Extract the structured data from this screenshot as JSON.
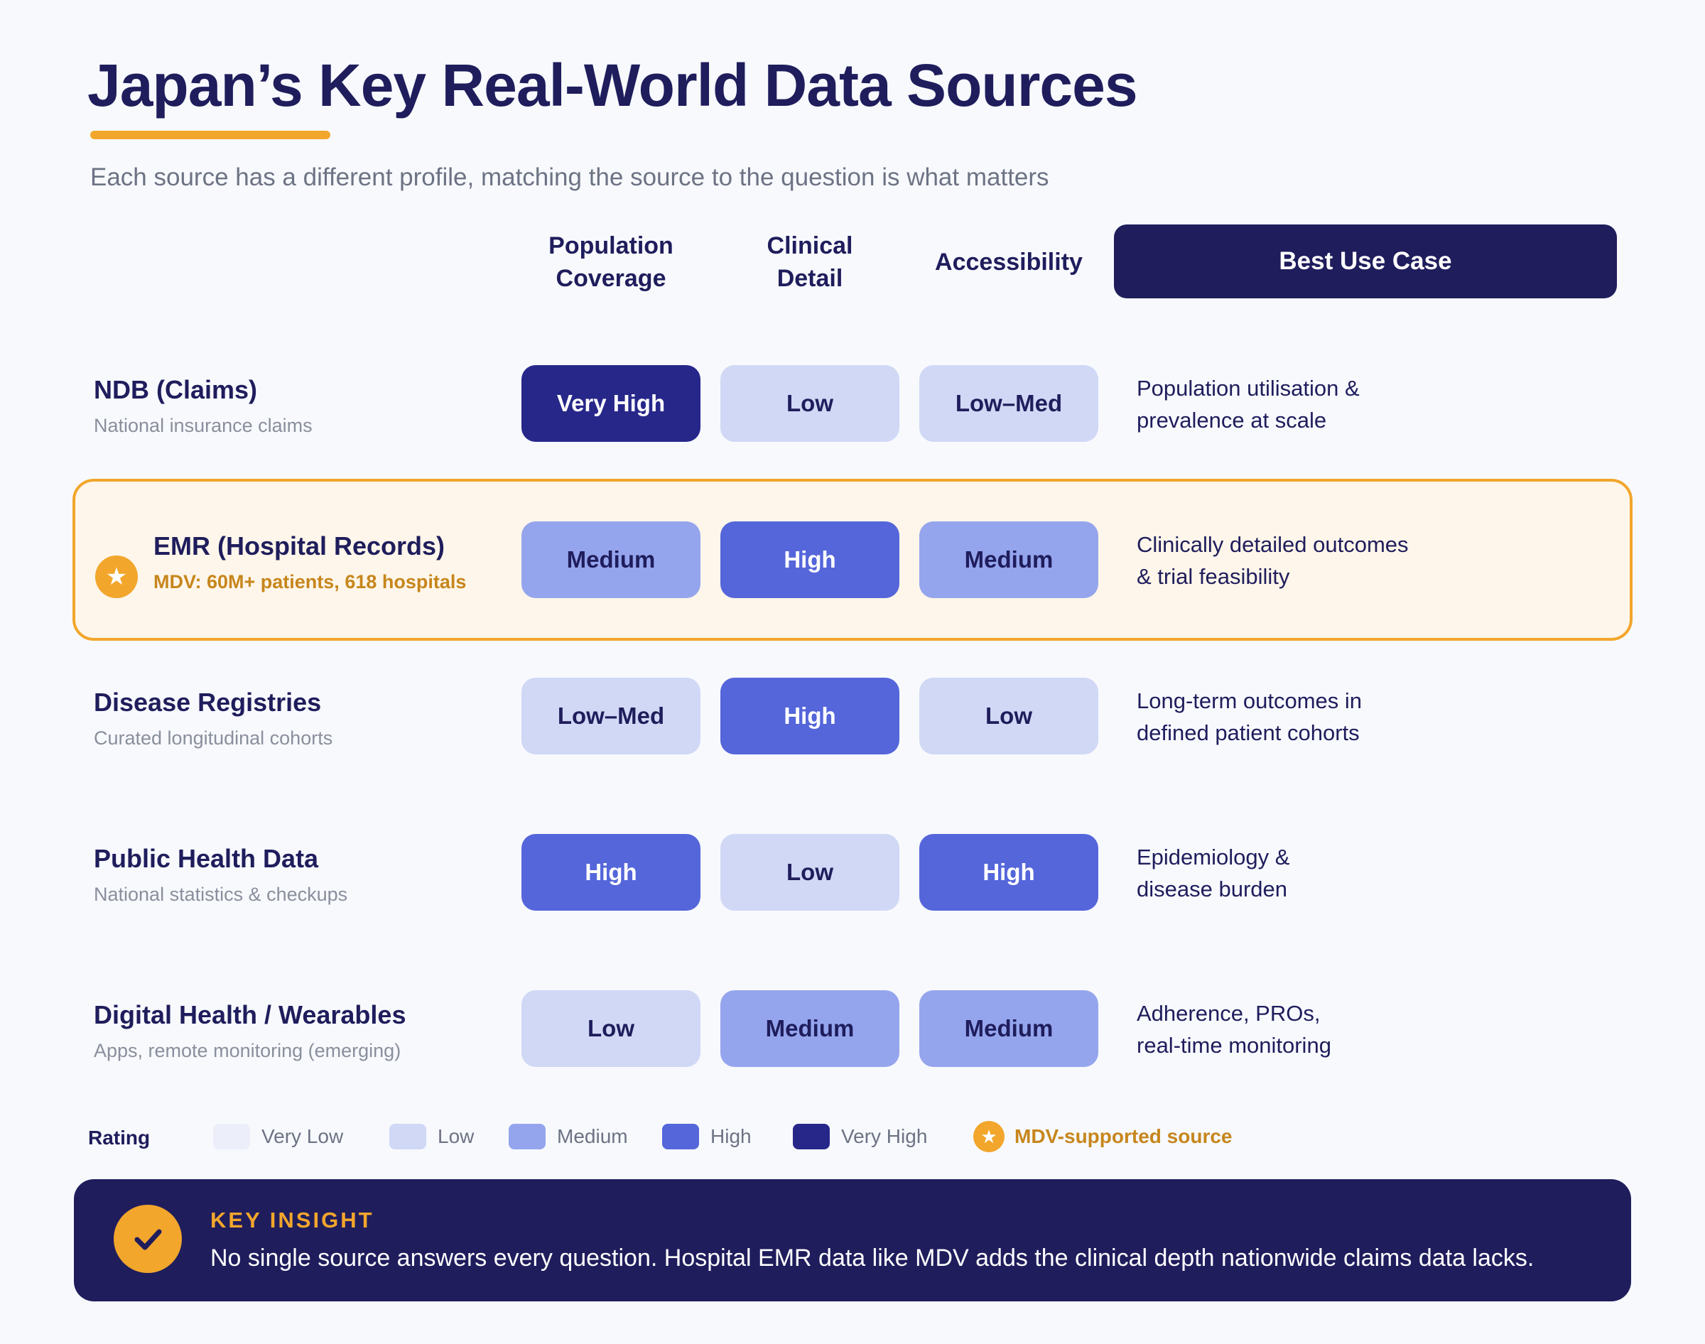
{
  "title": "Japan’s Key Real-World Data Sources",
  "subtitle": "Each source has a different profile, matching the source to the question is what matters",
  "columns": {
    "population": "Population\nCoverage",
    "clinical": "Clinical\nDetail",
    "accessibility": "Accessibility",
    "best_use": "Best Use Case"
  },
  "rows": [
    {
      "name": "NDB (Claims)",
      "desc": "National insurance claims",
      "population": "Very High",
      "clinical": "Low",
      "accessibility": "Low–Med",
      "best_use": "Population utilisation &\nprevalence at scale"
    },
    {
      "name": "EMR (Hospital Records)",
      "desc": "MDV: 60M+ patients, 618 hospitals",
      "population": "Medium",
      "clinical": "High",
      "accessibility": "Medium",
      "best_use": "Clinically detailed outcomes\n& trial feasibility",
      "star_icon": "star-icon"
    },
    {
      "name": "Disease Registries",
      "desc": "Curated longitudinal cohorts",
      "population": "Low–Med",
      "clinical": "High",
      "accessibility": "Low",
      "best_use": "Long-term outcomes in\ndefined patient cohorts"
    },
    {
      "name": "Public Health Data",
      "desc": "National statistics & checkups",
      "population": "High",
      "clinical": "Low",
      "accessibility": "High",
      "best_use": "Epidemiology &\ndisease burden"
    },
    {
      "name": "Digital Health / Wearables",
      "desc": "Apps, remote monitoring (emerging)",
      "population": "Low",
      "clinical": "Medium",
      "accessibility": "Medium",
      "best_use": "Adherence, PROs,\nreal-time monitoring"
    }
  ],
  "legend": {
    "title": "Rating",
    "items": [
      {
        "label": "Very Low",
        "color": "#eceef9"
      },
      {
        "label": "Low",
        "color": "#d0d8f5"
      },
      {
        "label": "Medium",
        "color": "#95a5ed"
      },
      {
        "label": "High",
        "color": "#5566da"
      },
      {
        "label": "Very High",
        "color": "#27278a"
      }
    ],
    "mdv": "MDV-supported source"
  },
  "insight": {
    "label": "KEY INSIGHT",
    "text": "No single source answers every question. Hospital EMR data like MDV adds the clinical depth nationwide claims data lacks.",
    "icon": "check-icon"
  },
  "colors": {
    "navy": "#1f1d5c",
    "accent": "#f2a62c",
    "mdv_text": "#c7861d"
  }
}
